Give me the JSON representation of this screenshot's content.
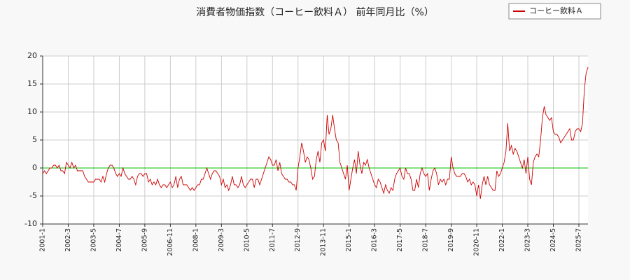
{
  "chart_data": {
    "type": "line",
    "title": "消費者物価指数（コーヒー飲料Ａ） 前年同月比（%）",
    "categories": [
      "2001-1",
      null,
      null,
      null,
      null,
      null,
      null,
      null,
      null,
      null,
      null,
      null,
      null,
      null,
      "2002-3",
      null,
      null,
      null,
      null,
      null,
      null,
      null,
      null,
      null,
      null,
      null,
      null,
      null,
      "2003-5",
      null,
      null,
      null,
      null,
      null,
      null,
      null,
      null,
      null,
      null,
      null,
      null,
      null,
      "2004-7",
      null,
      null,
      null,
      null,
      null,
      null,
      null,
      null,
      null,
      null,
      null,
      null,
      null,
      "2005-9",
      null,
      null,
      null,
      null,
      null,
      null,
      null,
      null,
      null,
      null,
      null,
      null,
      null,
      "2006-11",
      null,
      null,
      null,
      null,
      null,
      null,
      null,
      null,
      null,
      null,
      null,
      null,
      null,
      "2008-1",
      null,
      null,
      null,
      null,
      null,
      null,
      null,
      null,
      null,
      null,
      null,
      null,
      null,
      "2009-3",
      null,
      null,
      null,
      null,
      null,
      null,
      null,
      null,
      null,
      null,
      null,
      null,
      null,
      "2010-5",
      null,
      null,
      null,
      null,
      null,
      null,
      null,
      null,
      null,
      null,
      null,
      null,
      null,
      "2011-7",
      null,
      null,
      null,
      null,
      null,
      null,
      null,
      null,
      null,
      null,
      null,
      null,
      null,
      "2012-9",
      null,
      null,
      null,
      null,
      null,
      null,
      null,
      null,
      null,
      null,
      null,
      null,
      null,
      "2013-11",
      null,
      null,
      null,
      null,
      null,
      null,
      null,
      null,
      null,
      null,
      null,
      null,
      null,
      "2015-1",
      null,
      null,
      null,
      null,
      null,
      null,
      null,
      null,
      null,
      null,
      null,
      null,
      null,
      "2016-3",
      null,
      null,
      null,
      null,
      null,
      null,
      null,
      null,
      null,
      null,
      null,
      null,
      null,
      "2017-5",
      null,
      null,
      null,
      null,
      null,
      null,
      null,
      null,
      null,
      null,
      null,
      null,
      null,
      "2018-7",
      null,
      null,
      null,
      null,
      null,
      null,
      null,
      null,
      null,
      null,
      null,
      null,
      null,
      "2019-9",
      null,
      null,
      null,
      null,
      null,
      null,
      null,
      null,
      null,
      null,
      null,
      null,
      null,
      "2020-11",
      null,
      null,
      null,
      null,
      null,
      null,
      null,
      null,
      null,
      null,
      null,
      null,
      null,
      "2022-1",
      null,
      null,
      null,
      null,
      null,
      null,
      null,
      null,
      null,
      null,
      null,
      null,
      null,
      "2023-3",
      null,
      null,
      null,
      null,
      null,
      null,
      null,
      null,
      null,
      null,
      null,
      null,
      null,
      "2024-5",
      null,
      null,
      null,
      null,
      null,
      null,
      null,
      null,
      null,
      null,
      null,
      null,
      null,
      "2025-7",
      null,
      null,
      null,
      null,
      null
    ],
    "series": [
      {
        "name": "コーヒー飲料Ａ",
        "color": "#cc0000",
        "values": [
          -1,
          -0.5,
          -1,
          -0.5,
          0,
          0,
          0.5,
          0.5,
          0,
          0.5,
          -0.5,
          -0.5,
          -1,
          1,
          0.5,
          0,
          1,
          0,
          0.5,
          -0.5,
          -0.5,
          -0.5,
          -0.5,
          -1.5,
          -2,
          -2.5,
          -2.5,
          -2.5,
          -2.5,
          -2,
          -2,
          -2,
          -2.5,
          -1.5,
          -2.5,
          -1,
          0,
          0.5,
          0.5,
          0,
          -1,
          -1.5,
          -1,
          -1.5,
          0,
          -1,
          -1.5,
          -2,
          -2,
          -1.5,
          -2,
          -3,
          -1.5,
          -1,
          -1,
          -1.5,
          -1,
          -1,
          -2.5,
          -2,
          -3,
          -2.5,
          -3,
          -2,
          -3,
          -3.5,
          -3,
          -3,
          -3.5,
          -3,
          -2.5,
          -3.5,
          -3,
          -1.5,
          -3.5,
          -2,
          -1.5,
          -3,
          -3,
          -3,
          -3.5,
          -4,
          -3.5,
          -4,
          -3.5,
          -3,
          -3,
          -2,
          -2,
          -1,
          0,
          -1,
          -2,
          -1,
          -0.5,
          -0.5,
          -1,
          -1.5,
          -3,
          -2,
          -3.5,
          -3,
          -4,
          -3,
          -1.5,
          -3,
          -3,
          -3.5,
          -3,
          -1.5,
          -3,
          -3.5,
          -3,
          -2.5,
          -2,
          -2,
          -3.5,
          -2,
          -2,
          -3,
          -2,
          -1,
          0,
          1,
          2,
          1.5,
          0.5,
          0.5,
          1.5,
          -0.5,
          1,
          -1,
          -1.5,
          -2,
          -2,
          -2.5,
          -2.5,
          -3,
          -3,
          -4,
          0,
          2,
          4.5,
          3,
          1,
          2,
          1.5,
          0,
          -2,
          -1.5,
          1.5,
          3,
          1,
          4.5,
          5,
          3,
          9.5,
          6,
          7,
          9.5,
          7,
          5,
          4.5,
          1,
          0,
          -1,
          -2,
          0.5,
          -4,
          -2,
          0,
          1.5,
          -1,
          3,
          0.5,
          -1,
          1,
          0.5,
          1.5,
          0,
          -1,
          -2,
          -3,
          -3.5,
          -2,
          -2.5,
          -3.5,
          -4.5,
          -3,
          -4,
          -4.5,
          -3.5,
          -4,
          -2,
          -1,
          -0.5,
          0,
          -1.5,
          -2,
          0,
          -1,
          -1,
          -2,
          -4,
          -4,
          -2,
          -3.5,
          -1,
          0,
          -1,
          -1.5,
          -1,
          -4,
          -2,
          -0.5,
          0,
          -1,
          -3,
          -2,
          -2.5,
          -2,
          -3,
          -2,
          -2,
          2,
          0,
          -1,
          -1.5,
          -1.5,
          -1.5,
          -1,
          -1,
          -1.5,
          -2.5,
          -2,
          -3,
          -2.5,
          -3,
          -5,
          -3,
          -5.5,
          -3,
          -1.5,
          -3,
          -1.5,
          -3,
          -3.5,
          -4,
          -4,
          -0.5,
          -1.5,
          -1,
          0,
          1,
          3,
          8,
          3,
          4,
          2.5,
          3.5,
          3,
          2,
          1,
          0,
          1.5,
          -1,
          2,
          -2,
          -3,
          1,
          2,
          2.5,
          2,
          5,
          9,
          11,
          9.5,
          9,
          8.5,
          9,
          6.5,
          6,
          6,
          5.5,
          4.5,
          5,
          5.5,
          6,
          6.5,
          7,
          5,
          5,
          6.5,
          7,
          7,
          6.5,
          8,
          14,
          17,
          18
        ]
      }
    ],
    "ylim": [
      -10,
      20
    ],
    "yticks": [
      -10,
      -5,
      0,
      5,
      10,
      15,
      20
    ],
    "grid": true,
    "reference_line": {
      "value": 0,
      "color": "#00c000"
    },
    "legend": "upper right"
  }
}
